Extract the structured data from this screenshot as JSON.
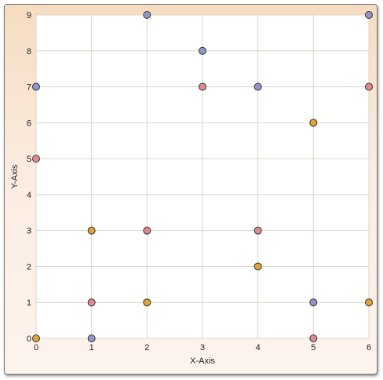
{
  "chart_data": {
    "type": "scatter",
    "xlabel": "X-Axis",
    "ylabel": "Y-Axis",
    "xlim": [
      0,
      6
    ],
    "ylim": [
      0,
      9
    ],
    "x_ticks": [
      "0",
      "1",
      "2",
      "3",
      "4",
      "5",
      "6"
    ],
    "y_ticks": [
      "0",
      "1",
      "2",
      "3",
      "4",
      "5",
      "6",
      "7",
      "8",
      "9"
    ],
    "grid": true,
    "legend": "none",
    "series": [
      {
        "color": "#e08a8f",
        "points": [
          {
            "x": 0,
            "y": 5
          },
          {
            "x": 1,
            "y": 1
          },
          {
            "x": 2,
            "y": 3
          },
          {
            "x": 3,
            "y": 7
          },
          {
            "x": 4,
            "y": 3
          },
          {
            "x": 5,
            "y": 0
          },
          {
            "x": 6,
            "y": 7
          }
        ]
      },
      {
        "color": "#e0a33a",
        "points": [
          {
            "x": 0,
            "y": 0
          },
          {
            "x": 1,
            "y": 3
          },
          {
            "x": 2,
            "y": 1
          },
          {
            "x": 4,
            "y": 2
          },
          {
            "x": 5,
            "y": 6
          },
          {
            "x": 6,
            "y": 1
          }
        ]
      },
      {
        "color": "#8f96c8",
        "points": [
          {
            "x": 0,
            "y": 7
          },
          {
            "x": 1,
            "y": 0
          },
          {
            "x": 2,
            "y": 9
          },
          {
            "x": 3,
            "y": 8
          },
          {
            "x": 4,
            "y": 7
          },
          {
            "x": 5,
            "y": 1
          },
          {
            "x": 6,
            "y": 9
          }
        ]
      }
    ]
  }
}
